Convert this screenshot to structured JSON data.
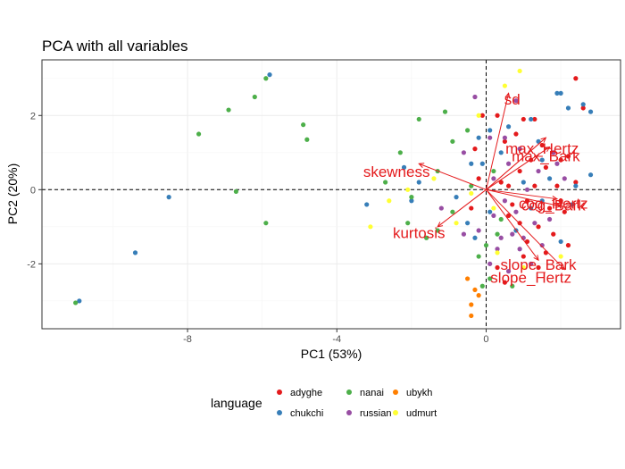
{
  "chart_data": {
    "type": "scatter",
    "title": "PCA with all variables",
    "xlabel": "PC1 (53%)",
    "ylabel": "PC2 (20%)",
    "xlim": [
      -11.9,
      3.6
    ],
    "ylim": [
      -3.75,
      3.5
    ],
    "xticks": [
      -8,
      -4,
      0
    ],
    "yticks": [
      -2,
      0,
      2
    ],
    "grid": true,
    "reference_lines": {
      "x": 0,
      "y": 0,
      "style": "dashed"
    },
    "legend": {
      "title": "language",
      "position": "bottom",
      "entries": [
        {
          "name": "adyghe",
          "color": "#e41a1c"
        },
        {
          "name": "chukchi",
          "color": "#377eb8"
        },
        {
          "name": "nanai",
          "color": "#4daf4a"
        },
        {
          "name": "russian",
          "color": "#984ea3"
        },
        {
          "name": "ubykh",
          "color": "#ff7f00"
        },
        {
          "name": "udmurt",
          "color": "#ffff33"
        }
      ]
    },
    "series": [
      {
        "name": "adyghe",
        "color": "#e41a1c",
        "points": [
          [
            2.4,
            3.0
          ],
          [
            1.0,
            1.9
          ],
          [
            1.3,
            1.9
          ],
          [
            0.3,
            2.0
          ],
          [
            -0.1,
            2.0
          ],
          [
            0.8,
            1.5
          ],
          [
            0.5,
            1.3
          ],
          [
            1.5,
            1.2
          ],
          [
            1.8,
            1.0
          ],
          [
            2.0,
            0.8
          ],
          [
            1.2,
            0.8
          ],
          [
            1.6,
            0.6
          ],
          [
            2.2,
            0.9
          ],
          [
            0.9,
            0.5
          ],
          [
            2.4,
            0.2
          ],
          [
            1.9,
            0.1
          ],
          [
            1.3,
            0.1
          ],
          [
            0.4,
            0.2
          ],
          [
            0.6,
            0.1
          ],
          [
            2.0,
            -0.3
          ],
          [
            1.7,
            -0.5
          ],
          [
            2.1,
            -0.6
          ],
          [
            1.1,
            -0.3
          ],
          [
            0.7,
            -0.4
          ],
          [
            -0.4,
            -0.5
          ],
          [
            -0.2,
            0.3
          ],
          [
            0.9,
            -0.9
          ],
          [
            1.4,
            -1.0
          ],
          [
            1.8,
            -1.2
          ],
          [
            1.1,
            -1.4
          ],
          [
            0.6,
            -0.7
          ],
          [
            1.6,
            -1.7
          ],
          [
            2.2,
            -1.5
          ],
          [
            1.0,
            -1.8
          ],
          [
            0.3,
            -2.1
          ],
          [
            0.5,
            -2.5
          ],
          [
            1.4,
            -2.1
          ],
          [
            2.6,
            2.2
          ],
          [
            -0.3,
            1.1
          ]
        ]
      },
      {
        "name": "chukchi",
        "color": "#377eb8",
        "points": [
          [
            -10.9,
            -3.0
          ],
          [
            -9.4,
            -1.7
          ],
          [
            -8.5,
            -0.2
          ],
          [
            -5.8,
            3.1
          ],
          [
            2.6,
            2.3
          ],
          [
            2.8,
            2.1
          ],
          [
            2.0,
            2.6
          ],
          [
            1.9,
            2.6
          ],
          [
            2.2,
            2.2
          ],
          [
            1.2,
            1.9
          ],
          [
            0.1,
            1.6
          ],
          [
            1.4,
            1.3
          ],
          [
            1.5,
            0.8
          ],
          [
            -0.2,
            1.4
          ],
          [
            2.8,
            0.4
          ],
          [
            2.4,
            0.1
          ],
          [
            1.0,
            0.2
          ],
          [
            -0.4,
            0.7
          ],
          [
            -1.8,
            0.2
          ],
          [
            -2.2,
            0.6
          ],
          [
            -0.8,
            -0.2
          ],
          [
            -0.5,
            -0.9
          ],
          [
            0.1,
            -0.6
          ],
          [
            1.2,
            -0.5
          ],
          [
            2.3,
            -0.4
          ],
          [
            1.7,
            0.3
          ],
          [
            0.8,
            -1.1
          ],
          [
            -0.3,
            -1.3
          ],
          [
            -0.1,
            0.7
          ],
          [
            2.0,
            -1.4
          ],
          [
            -3.2,
            -0.4
          ],
          [
            0.6,
            1.7
          ],
          [
            -2.0,
            -0.3
          ],
          [
            0.4,
            1.0
          ],
          [
            1.5,
            -0.3
          ]
        ]
      },
      {
        "name": "nanai",
        "color": "#4daf4a",
        "points": [
          [
            -11.0,
            -3.05
          ],
          [
            -7.7,
            1.5
          ],
          [
            -6.9,
            2.15
          ],
          [
            -6.2,
            2.5
          ],
          [
            -5.9,
            3.0
          ],
          [
            -4.9,
            1.75
          ],
          [
            -4.8,
            1.35
          ],
          [
            -6.7,
            -0.05
          ],
          [
            -5.9,
            -0.9
          ],
          [
            -1.8,
            1.9
          ],
          [
            -1.1,
            2.1
          ],
          [
            -0.5,
            1.6
          ],
          [
            -2.3,
            1.0
          ],
          [
            -2.7,
            0.2
          ],
          [
            -2.0,
            -0.2
          ],
          [
            -1.3,
            0.5
          ],
          [
            -2.1,
            -0.9
          ],
          [
            -1.3,
            -1.1
          ],
          [
            0.0,
            -1.5
          ],
          [
            -0.2,
            -1.8
          ],
          [
            0.1,
            -2.4
          ],
          [
            0.7,
            -2.6
          ],
          [
            0.3,
            -1.2
          ],
          [
            -0.9,
            -0.6
          ],
          [
            -1.6,
            -1.3
          ],
          [
            -0.1,
            -2.6
          ],
          [
            0.4,
            -0.8
          ],
          [
            -0.9,
            1.3
          ],
          [
            0.2,
            0.5
          ],
          [
            -0.4,
            0.1
          ]
        ]
      },
      {
        "name": "russian",
        "color": "#984ea3",
        "points": [
          [
            -0.3,
            2.5
          ],
          [
            0.8,
            2.4
          ],
          [
            0.1,
            1.4
          ],
          [
            0.9,
            1.1
          ],
          [
            1.8,
            1.0
          ],
          [
            0.6,
            0.7
          ],
          [
            1.4,
            0.5
          ],
          [
            2.1,
            0.3
          ],
          [
            1.1,
            0.0
          ],
          [
            0.5,
            -0.3
          ],
          [
            0.2,
            -0.7
          ],
          [
            1.3,
            -0.9
          ],
          [
            0.7,
            -1.2
          ],
          [
            0.3,
            -1.6
          ],
          [
            0.9,
            -1.6
          ],
          [
            1.2,
            -2.0
          ],
          [
            0.6,
            -2.2
          ],
          [
            0.1,
            -2.0
          ],
          [
            -0.6,
            -1.2
          ],
          [
            -1.2,
            -0.5
          ],
          [
            -0.6,
            1.0
          ],
          [
            1.5,
            -1.5
          ],
          [
            0.8,
            -0.6
          ],
          [
            0.4,
            -1.3
          ],
          [
            1.9,
            0.7
          ],
          [
            0.2,
            0.3
          ],
          [
            -0.2,
            -1.1
          ],
          [
            1.0,
            -1.3
          ],
          [
            0.5,
            1.4
          ],
          [
            1.7,
            -0.8
          ]
        ]
      },
      {
        "name": "ubykh",
        "color": "#ff7f00",
        "points": [
          [
            -0.5,
            -2.4
          ],
          [
            -0.3,
            -2.7
          ],
          [
            -0.4,
            -3.1
          ],
          [
            -0.4,
            -3.4
          ],
          [
            -0.2,
            -2.85
          ]
        ]
      },
      {
        "name": "udmurt",
        "color": "#ffff33",
        "points": [
          [
            0.9,
            3.2
          ],
          [
            0.5,
            2.8
          ],
          [
            -3.1,
            -1.0
          ],
          [
            -1.4,
            0.3
          ],
          [
            -2.1,
            0.0
          ],
          [
            -0.8,
            -0.9
          ],
          [
            0.2,
            -0.5
          ],
          [
            -0.2,
            2.0
          ],
          [
            2.0,
            -1.8
          ],
          [
            1.0,
            -2.1
          ],
          [
            -0.4,
            -0.1
          ],
          [
            -2.6,
            -0.3
          ],
          [
            0.3,
            -1.7
          ]
        ]
      }
    ],
    "loadings": [
      {
        "name": "sd",
        "x": 0.6,
        "y": 2.6
      },
      {
        "name": "max_Hertz",
        "x": 1.6,
        "y": 1.4
      },
      {
        "name": "max_Bark",
        "x": 1.7,
        "y": 1.15
      },
      {
        "name": "skewness",
        "x": -1.8,
        "y": 0.7
      },
      {
        "name": "cog_Hertz",
        "x": 1.9,
        "y": -0.25
      },
      {
        "name": "cog_Bark",
        "x": 2.0,
        "y": -0.45
      },
      {
        "name": "kurtosis",
        "x": -1.3,
        "y": -1.0
      },
      {
        "name": "slope_Bark",
        "x": 1.4,
        "y": -1.9
      },
      {
        "name": "slope_Hertz",
        "x": 2.1,
        "y": -2.15
      }
    ],
    "loading_labels": [
      {
        "name": "sd",
        "x": 0.7,
        "y": 2.4
      },
      {
        "name": "max_Hertz",
        "x": 1.5,
        "y": 1.08
      },
      {
        "name": "max_Bark",
        "x": 1.6,
        "y": 0.88
      },
      {
        "name": "skewness",
        "x": -2.4,
        "y": 0.45
      },
      {
        "name": "cog_Hertz",
        "x": 1.8,
        "y": -0.4
      },
      {
        "name": "cog_Bark",
        "x": 1.8,
        "y": -0.45
      },
      {
        "name": "kurtosis",
        "x": -1.8,
        "y": -1.2
      },
      {
        "name": "slope_Bark",
        "x": 1.4,
        "y": -2.05
      },
      {
        "name": "slope_Hertz",
        "x": 1.2,
        "y": -2.4
      }
    ],
    "loading_color": "#e41a1c"
  }
}
